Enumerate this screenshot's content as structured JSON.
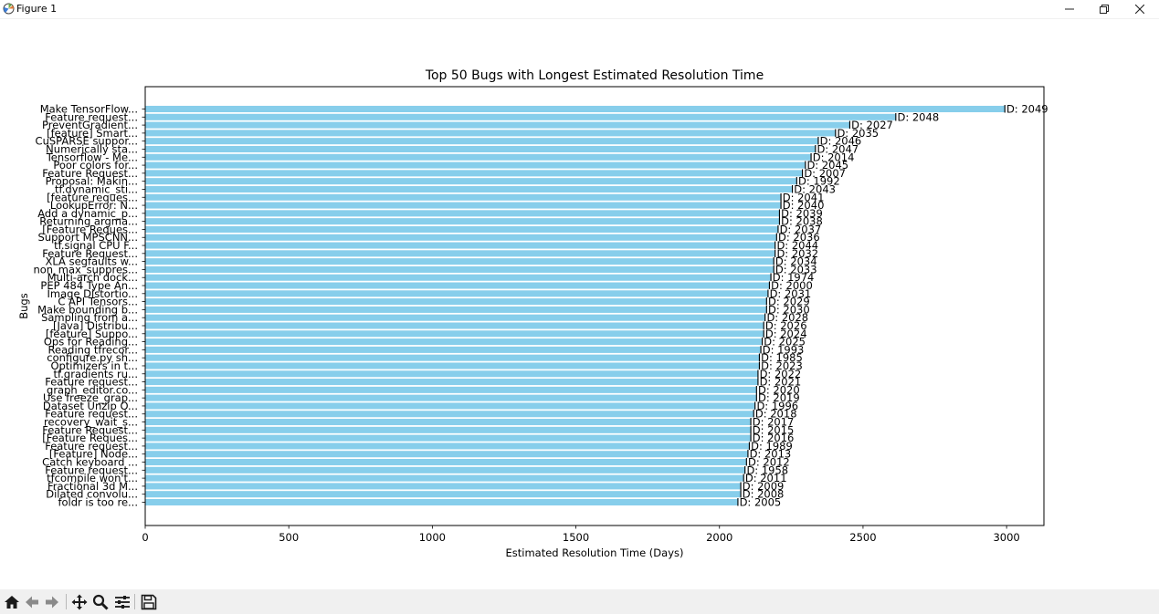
{
  "window": {
    "title": "Figure 1",
    "controls": [
      "minimize",
      "restore",
      "close"
    ]
  },
  "toolbar": {
    "icons": [
      "home-icon",
      "back-arrow-icon",
      "forward-arrow-icon",
      "pan-icon",
      "zoom-icon",
      "configure-subplots-icon",
      "save-icon"
    ]
  },
  "chart_data": {
    "type": "bar",
    "orientation": "horizontal",
    "title": "Top 50 Bugs with Longest Estimated Resolution Time",
    "xlabel": "Estimated Resolution Time (Days)",
    "ylabel": "Bugs",
    "xlim": [
      0,
      3130
    ],
    "xticks": [
      0,
      500,
      1000,
      1500,
      2000,
      2500,
      3000
    ],
    "bar_color": "#87ceeb",
    "grid": false,
    "bars": [
      {
        "label": "Make TensorFlow...",
        "value": 2995,
        "annotation": "ID: 2049"
      },
      {
        "label": "Feature request...",
        "value": 2615,
        "annotation": "ID: 2048"
      },
      {
        "label": "PreventGradient...",
        "value": 2455,
        "annotation": "ID: 2027"
      },
      {
        "label": "[feature] Smart...",
        "value": 2405,
        "annotation": "ID: 2035"
      },
      {
        "label": "CuSPARSE suppor...",
        "value": 2345,
        "annotation": "ID: 2046"
      },
      {
        "label": "Numerically sta...",
        "value": 2335,
        "annotation": "ID: 2047"
      },
      {
        "label": "Tensorflow - Me...",
        "value": 2320,
        "annotation": "ID: 2014"
      },
      {
        "label": "Poor colors for...",
        "value": 2300,
        "annotation": "ID: 2045"
      },
      {
        "label": "Feature Request...",
        "value": 2290,
        "annotation": "ID: 2007"
      },
      {
        "label": "Proposal: Makin...",
        "value": 2270,
        "annotation": "ID: 1992"
      },
      {
        "label": "tf.dynamic_sti...",
        "value": 2255,
        "annotation": "ID: 2043"
      },
      {
        "label": "[feature reques...",
        "value": 2215,
        "annotation": "ID: 2041"
      },
      {
        "label": "LookupError: N...",
        "value": 2215,
        "annotation": "ID: 2040"
      },
      {
        "label": "Add a dynamic_p...",
        "value": 2210,
        "annotation": "ID: 2039"
      },
      {
        "label": "Returning argma...",
        "value": 2210,
        "annotation": "ID: 2038"
      },
      {
        "label": "[Feature Reques...",
        "value": 2205,
        "annotation": "ID: 2037"
      },
      {
        "label": "Support MPSCNN...",
        "value": 2200,
        "annotation": "ID: 2036"
      },
      {
        "label": "tf.signal CPU F...",
        "value": 2195,
        "annotation": "ID: 2044"
      },
      {
        "label": "Feature Request...",
        "value": 2195,
        "annotation": "ID: 2032"
      },
      {
        "label": "XLA segfaults w...",
        "value": 2190,
        "annotation": "ID: 2034"
      },
      {
        "label": "non_max_suppres...",
        "value": 2190,
        "annotation": "ID: 2033"
      },
      {
        "label": "Multi-arch dock...",
        "value": 2180,
        "annotation": "ID: 1974"
      },
      {
        "label": "PEP 484 Type An...",
        "value": 2175,
        "annotation": "ID: 2000"
      },
      {
        "label": "Image Distortio...",
        "value": 2170,
        "annotation": "ID: 2031"
      },
      {
        "label": "C API Tensors...",
        "value": 2165,
        "annotation": "ID: 2029"
      },
      {
        "label": "Make bounding b...",
        "value": 2165,
        "annotation": "ID: 2030"
      },
      {
        "label": "Sampling from a...",
        "value": 2160,
        "annotation": "ID: 2028"
      },
      {
        "label": "[Java] Distribu...",
        "value": 2155,
        "annotation": "ID: 2026"
      },
      {
        "label": "[feature] Suppo...",
        "value": 2155,
        "annotation": "ID: 2024"
      },
      {
        "label": "Ops for Reading...",
        "value": 2150,
        "annotation": "ID: 2025"
      },
      {
        "label": "Reading tfrecor...",
        "value": 2145,
        "annotation": "ID: 1993"
      },
      {
        "label": "configure.py sh...",
        "value": 2140,
        "annotation": "ID: 1985"
      },
      {
        "label": "Optimizers in t...",
        "value": 2140,
        "annotation": "ID: 2023"
      },
      {
        "label": "tf.gradients ru...",
        "value": 2135,
        "annotation": "ID: 2022"
      },
      {
        "label": "Feature request...",
        "value": 2135,
        "annotation": "ID: 2021"
      },
      {
        "label": "graph_editor.co...",
        "value": 2130,
        "annotation": "ID: 2020"
      },
      {
        "label": "Use freeze_grap...",
        "value": 2130,
        "annotation": "ID: 2019"
      },
      {
        "label": "Dataset Unzip O...",
        "value": 2125,
        "annotation": "ID: 1996"
      },
      {
        "label": "Feature request...",
        "value": 2120,
        "annotation": "ID: 2018"
      },
      {
        "label": "recovery_wait_s...",
        "value": 2110,
        "annotation": "ID: 2017"
      },
      {
        "label": "Feature Request...",
        "value": 2110,
        "annotation": "ID: 2015"
      },
      {
        "label": "[Feature Reques...",
        "value": 2110,
        "annotation": "ID: 2016"
      },
      {
        "label": "Feature request...",
        "value": 2105,
        "annotation": "ID: 1989"
      },
      {
        "label": "[Feature] Node...",
        "value": 2100,
        "annotation": "ID: 2013"
      },
      {
        "label": "Catch keyboard ...",
        "value": 2095,
        "annotation": "ID: 2012"
      },
      {
        "label": "Feature request...",
        "value": 2090,
        "annotation": "ID: 1958"
      },
      {
        "label": "tfcompile won't...",
        "value": 2085,
        "annotation": "ID: 2011"
      },
      {
        "label": "Fractional 3d M...",
        "value": 2075,
        "annotation": "ID: 2009"
      },
      {
        "label": "Dilated convolu...",
        "value": 2075,
        "annotation": "ID: 2008"
      },
      {
        "label": "foldr is too re...",
        "value": 2065,
        "annotation": "ID: 2005"
      }
    ]
  }
}
